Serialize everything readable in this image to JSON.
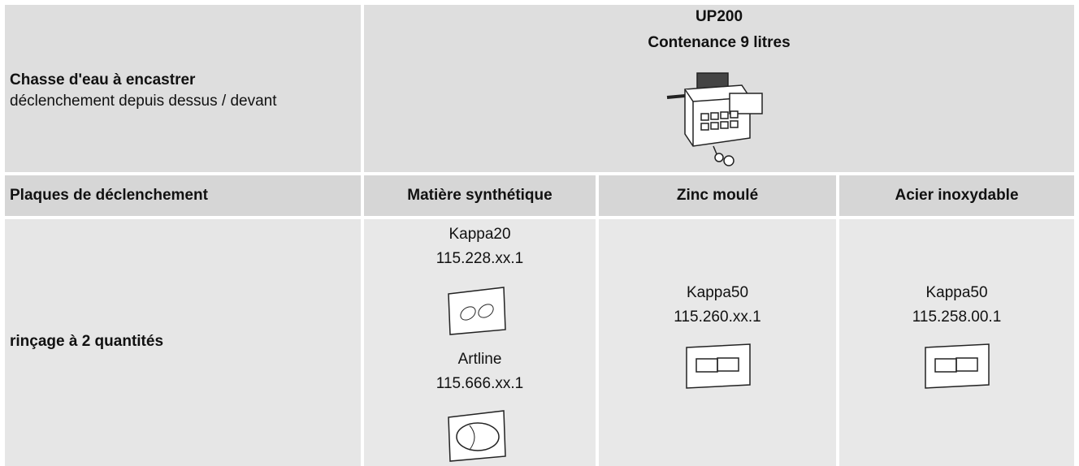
{
  "header": {
    "title": "Chasse d'eau à encastrer",
    "subtitle": "déclenchement depuis dessus / devant",
    "product": "UP200",
    "capacity": "Contenance 9 litres"
  },
  "table": {
    "columns": [
      "Plaques de déclenchement",
      "Matière synthétique",
      "Zinc moulé",
      "Acier inoxydable"
    ],
    "row_label": "rinçage à 2 quantités",
    "cells": [
      [
        {
          "name": "Kappa20",
          "code": "115.228.xx.1"
        },
        {
          "name": "Artline",
          "code": "115.666.xx.1"
        }
      ],
      [
        {
          "name": "Kappa50",
          "code": "115.260.xx.1"
        }
      ],
      [
        {
          "name": "Kappa50",
          "code": "115.258.00.1"
        }
      ]
    ]
  }
}
